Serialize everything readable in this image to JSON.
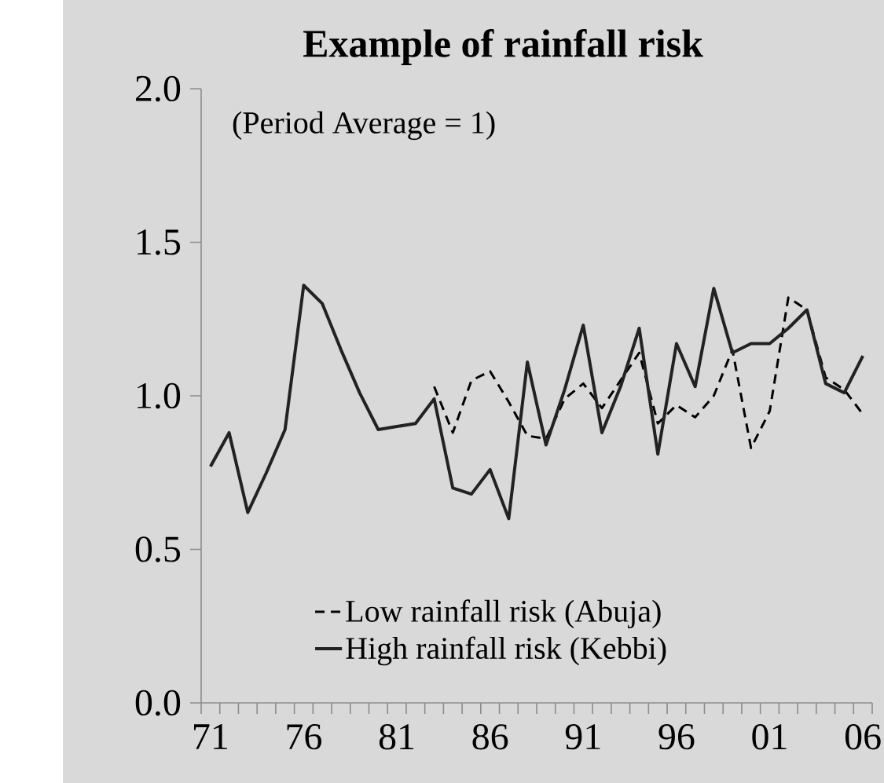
{
  "chart_data": {
    "type": "line",
    "title": "Example of rainfall risk",
    "annotations": [
      "(Period Average = 1)"
    ],
    "categories": [
      "71",
      null,
      null,
      null,
      null,
      "76",
      null,
      null,
      null,
      null,
      "81",
      null,
      null,
      null,
      null,
      "86",
      null,
      null,
      null,
      null,
      "91",
      null,
      null,
      null,
      null,
      "96",
      null,
      null,
      null,
      null,
      "01",
      null,
      null,
      null,
      null,
      "06"
    ],
    "ylim": [
      0,
      2
    ],
    "yticks": [
      {
        "value": 0,
        "label": "0.0"
      },
      {
        "value": 0.5,
        "label": "0.5"
      },
      {
        "value": 1,
        "label": "1.0"
      },
      {
        "value": 1.5,
        "label": "1.5"
      },
      {
        "value": 2,
        "label": "2.0"
      }
    ],
    "legend": "bottom",
    "series": [
      {
        "name": "Low rainfall risk (Abuja)",
        "color": "#000000",
        "line_style": "dashed",
        "values": [
          null,
          null,
          null,
          null,
          null,
          null,
          null,
          null,
          null,
          null,
          null,
          null,
          1.03,
          0.88,
          1.05,
          1.08,
          0.98,
          0.87,
          0.86,
          0.99,
          1.04,
          0.96,
          1.05,
          1.14,
          0.91,
          0.97,
          0.93,
          1.0,
          1.15,
          0.83,
          0.95,
          1.32,
          1.28,
          1.06,
          1.02,
          0.94
        ]
      },
      {
        "name": "High rainfall risk (Kebbi)",
        "color": "#222222",
        "line_style": "solid",
        "values": [
          0.77,
          0.88,
          0.62,
          0.75,
          0.89,
          1.36,
          1.3,
          1.15,
          1.01,
          0.89,
          0.9,
          0.91,
          0.99,
          0.7,
          0.68,
          0.76,
          0.6,
          1.11,
          0.84,
          1.02,
          1.23,
          0.88,
          1.03,
          1.22,
          0.81,
          1.17,
          1.03,
          1.35,
          1.14,
          1.17,
          1.17,
          1.22,
          1.28,
          1.04,
          1.01,
          1.13
        ]
      }
    ]
  }
}
